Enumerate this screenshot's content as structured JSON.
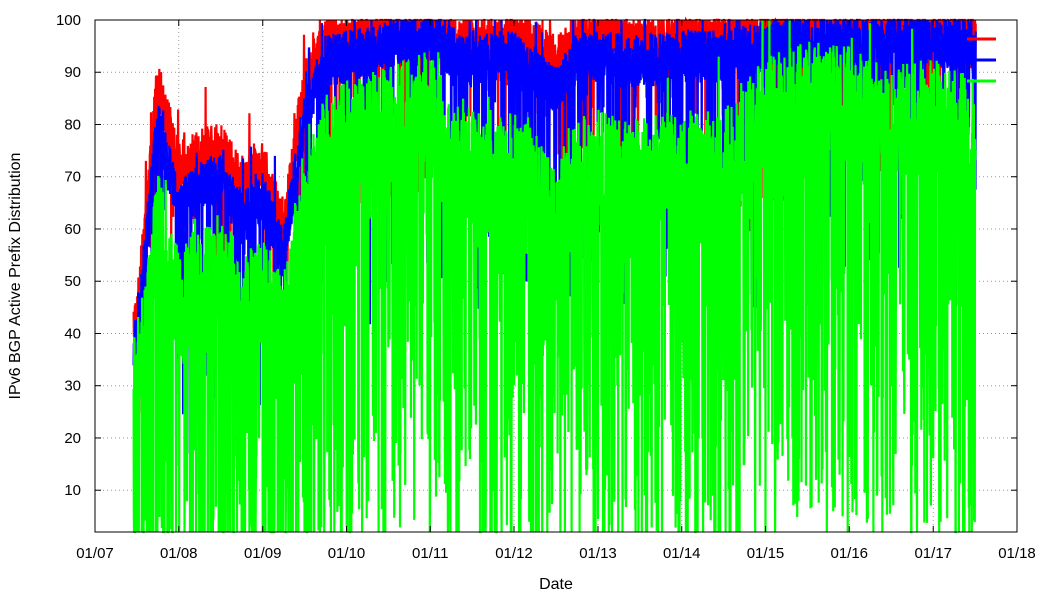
{
  "chart_data": {
    "type": "line",
    "title": "",
    "xlabel": "Date",
    "ylabel": "IPv6 BGP Active Prefix Distribution",
    "x_tick_labels": [
      "01/07",
      "01/08",
      "01/09",
      "01/10",
      "01/11",
      "01/12",
      "01/13",
      "01/14",
      "01/15",
      "01/16",
      "01/17",
      "01/18"
    ],
    "xlim": [
      "2007-01-01",
      "2018-01-01"
    ],
    "y_tick_labels": [
      "10",
      "20",
      "30",
      "40",
      "50",
      "60",
      "70",
      "80",
      "90",
      "100"
    ],
    "ylim": [
      2,
      100
    ],
    "grid": true,
    "legend_position": "top-right",
    "series": [
      {
        "color": "#ff0000",
        "anchors": [
          [
            "2007-07-01",
            42
          ],
          [
            "2007-10-01",
            88
          ],
          [
            "2008-01-01",
            72
          ],
          [
            "2008-04-01",
            74
          ],
          [
            "2008-07-01",
            76
          ],
          [
            "2008-10-01",
            68
          ],
          [
            "2009-01-01",
            72
          ],
          [
            "2009-04-01",
            60
          ],
          [
            "2009-07-01",
            88
          ],
          [
            "2009-10-01",
            96
          ],
          [
            "2010-01-01",
            96
          ],
          [
            "2010-07-01",
            98
          ],
          [
            "2011-01-01",
            99
          ],
          [
            "2011-04-01",
            97
          ],
          [
            "2011-07-01",
            96
          ],
          [
            "2011-10-01",
            97
          ],
          [
            "2012-01-01",
            97
          ],
          [
            "2012-04-01",
            95
          ],
          [
            "2012-07-01",
            92
          ],
          [
            "2012-10-01",
            97
          ],
          [
            "2013-01-01",
            97
          ],
          [
            "2013-07-01",
            96
          ],
          [
            "2014-01-01",
            97
          ],
          [
            "2014-07-01",
            97
          ],
          [
            "2015-01-01",
            98
          ],
          [
            "2015-07-01",
            99
          ],
          [
            "2016-01-01",
            99
          ],
          [
            "2016-07-01",
            99
          ],
          [
            "2017-01-01",
            99
          ],
          [
            "2017-07-01",
            98
          ]
        ]
      },
      {
        "color": "#0000ff",
        "anchors": [
          [
            "2007-07-01",
            38
          ],
          [
            "2007-10-01",
            80
          ],
          [
            "2008-01-01",
            64
          ],
          [
            "2008-04-01",
            68
          ],
          [
            "2008-07-01",
            70
          ],
          [
            "2008-10-01",
            62
          ],
          [
            "2009-01-01",
            66
          ],
          [
            "2009-04-01",
            55
          ],
          [
            "2009-07-01",
            82
          ],
          [
            "2009-10-01",
            92
          ],
          [
            "2010-01-01",
            93
          ],
          [
            "2010-07-01",
            95
          ],
          [
            "2011-01-01",
            97
          ],
          [
            "2011-04-01",
            94
          ],
          [
            "2011-07-01",
            92
          ],
          [
            "2011-10-01",
            93
          ],
          [
            "2012-01-01",
            93
          ],
          [
            "2012-04-01",
            90
          ],
          [
            "2012-07-01",
            86
          ],
          [
            "2012-10-01",
            93
          ],
          [
            "2013-01-01",
            93
          ],
          [
            "2013-07-01",
            92
          ],
          [
            "2014-01-01",
            93
          ],
          [
            "2014-07-01",
            93
          ],
          [
            "2015-01-01",
            95
          ],
          [
            "2015-07-01",
            96
          ],
          [
            "2016-01-01",
            96
          ],
          [
            "2016-07-01",
            96
          ],
          [
            "2017-01-01",
            96
          ],
          [
            "2017-07-01",
            95
          ]
        ]
      },
      {
        "color": "#00ff00",
        "anchors": [
          [
            "2007-07-01",
            30
          ],
          [
            "2007-10-01",
            60
          ],
          [
            "2008-01-01",
            45
          ],
          [
            "2008-04-01",
            50
          ],
          [
            "2008-07-01",
            52
          ],
          [
            "2008-10-01",
            45
          ],
          [
            "2009-01-01",
            48
          ],
          [
            "2009-04-01",
            40
          ],
          [
            "2009-07-01",
            65
          ],
          [
            "2009-10-01",
            75
          ],
          [
            "2010-01-01",
            78
          ],
          [
            "2010-07-01",
            80
          ],
          [
            "2011-01-01",
            84
          ],
          [
            "2011-04-01",
            74
          ],
          [
            "2011-07-01",
            72
          ],
          [
            "2011-10-01",
            70
          ],
          [
            "2012-01-01",
            72
          ],
          [
            "2012-04-01",
            68
          ],
          [
            "2012-07-01",
            60
          ],
          [
            "2012-10-01",
            70
          ],
          [
            "2013-01-01",
            72
          ],
          [
            "2013-07-01",
            70
          ],
          [
            "2014-01-01",
            72
          ],
          [
            "2014-07-01",
            72
          ],
          [
            "2015-01-01",
            82
          ],
          [
            "2015-07-01",
            85
          ],
          [
            "2016-01-01",
            84
          ],
          [
            "2016-07-01",
            80
          ],
          [
            "2017-01-01",
            82
          ],
          [
            "2017-07-01",
            78
          ]
        ]
      }
    ]
  }
}
